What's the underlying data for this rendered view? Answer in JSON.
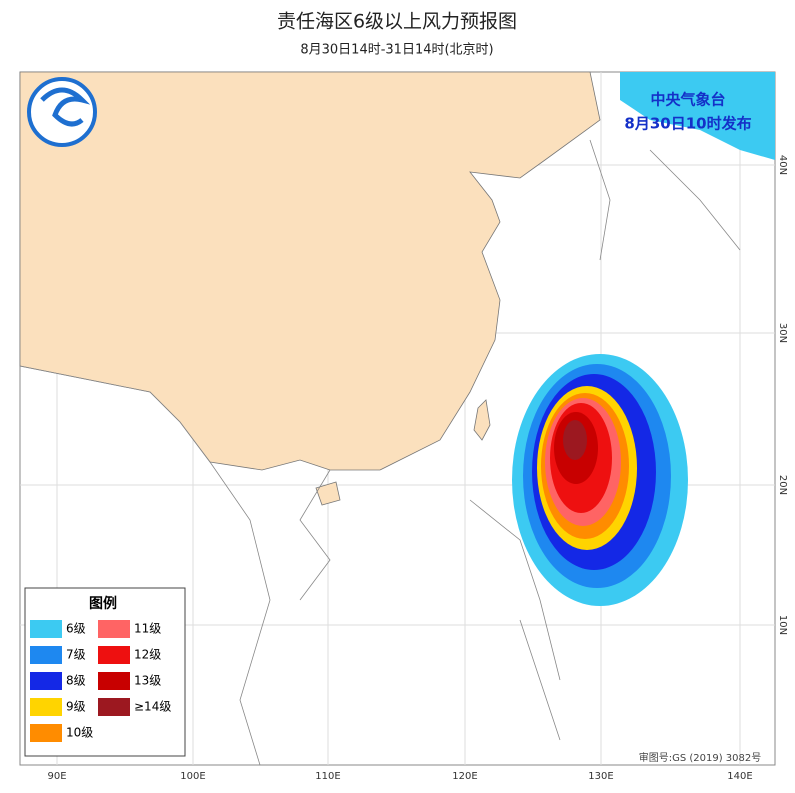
{
  "header": {
    "title": "责任海区6级以上风力预报图",
    "subtitle": "8月30日14时-31日14时(北京时)"
  },
  "issuer": {
    "name": "中央气象台",
    "issued": "8月30日10时发布"
  },
  "legend": {
    "title": "图例",
    "items": [
      {
        "label": "6级",
        "color": "#3ccaf2"
      },
      {
        "label": "7级",
        "color": "#1e88f0"
      },
      {
        "label": "8级",
        "color": "#1428e6"
      },
      {
        "label": "9级",
        "color": "#ffd400"
      },
      {
        "label": "10级",
        "color": "#ff8c00"
      },
      {
        "label": "11级",
        "color": "#ff6464"
      },
      {
        "label": "12级",
        "color": "#ee1010"
      },
      {
        "label": "13级",
        "color": "#c80000"
      },
      {
        "label": "≥14级",
        "color": "#9c1820"
      }
    ]
  },
  "axes": {
    "longitude": [
      "90E",
      "100E",
      "110E",
      "120E",
      "130E",
      "140E"
    ],
    "latitude": [
      "40N",
      "30N",
      "20N",
      "10N"
    ]
  },
  "footer": {
    "approval": "审图号:GS (2019) 3082号"
  }
}
